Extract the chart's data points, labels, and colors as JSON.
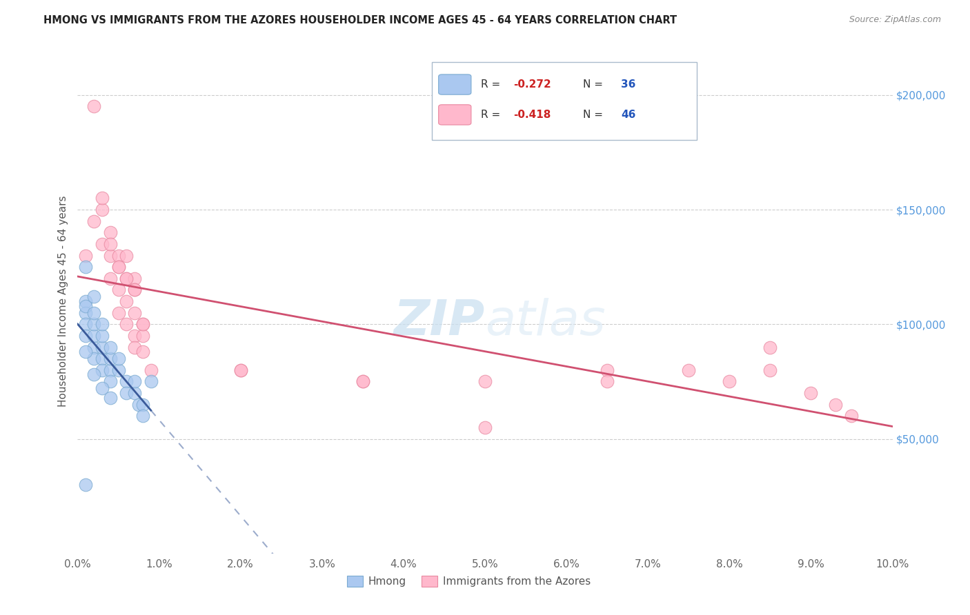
{
  "title": "HMONG VS IMMIGRANTS FROM THE AZORES HOUSEHOLDER INCOME AGES 45 - 64 YEARS CORRELATION CHART",
  "source": "Source: ZipAtlas.com",
  "ylabel": "Householder Income Ages 45 - 64 years",
  "xlim": [
    0.0,
    0.1
  ],
  "ylim": [
    0,
    220000
  ],
  "xticks": [
    0.0,
    0.01,
    0.02,
    0.03,
    0.04,
    0.05,
    0.06,
    0.07,
    0.08,
    0.09,
    0.1
  ],
  "xticklabels": [
    "0.0%",
    "1.0%",
    "2.0%",
    "3.0%",
    "4.0%",
    "5.0%",
    "6.0%",
    "7.0%",
    "8.0%",
    "9.0%",
    "10.0%"
  ],
  "yticks_right": [
    50000,
    100000,
    150000,
    200000
  ],
  "ytick_labels_right": [
    "$50,000",
    "$100,000",
    "$150,000",
    "$200,000"
  ],
  "watermark_zip": "ZIP",
  "watermark_atlas": "atlas",
  "hmong_color": "#aac8f0",
  "hmong_edge_color": "#7aaad0",
  "azores_color": "#ffb8cc",
  "azores_edge_color": "#e888a0",
  "hmong_line_color": "#3a5a9a",
  "azores_line_color": "#d05070",
  "hmong_R": -0.272,
  "hmong_N": 36,
  "azores_R": -0.418,
  "azores_N": 46,
  "hmong_x": [
    0.001,
    0.001,
    0.001,
    0.001,
    0.001,
    0.002,
    0.002,
    0.002,
    0.002,
    0.002,
    0.002,
    0.003,
    0.003,
    0.003,
    0.003,
    0.003,
    0.004,
    0.004,
    0.004,
    0.004,
    0.005,
    0.005,
    0.006,
    0.006,
    0.007,
    0.007,
    0.0075,
    0.008,
    0.008,
    0.009,
    0.001,
    0.001,
    0.002,
    0.003,
    0.004,
    0.001
  ],
  "hmong_y": [
    110000,
    105000,
    100000,
    95000,
    108000,
    90000,
    95000,
    100000,
    105000,
    85000,
    112000,
    85000,
    90000,
    95000,
    80000,
    100000,
    80000,
    85000,
    75000,
    90000,
    80000,
    85000,
    75000,
    70000,
    70000,
    75000,
    65000,
    65000,
    60000,
    75000,
    125000,
    88000,
    78000,
    72000,
    68000,
    30000
  ],
  "azores_x": [
    0.001,
    0.002,
    0.003,
    0.003,
    0.004,
    0.004,
    0.004,
    0.005,
    0.005,
    0.005,
    0.005,
    0.006,
    0.006,
    0.006,
    0.006,
    0.007,
    0.007,
    0.007,
    0.007,
    0.007,
    0.008,
    0.008,
    0.008,
    0.009,
    0.002,
    0.003,
    0.004,
    0.005,
    0.006,
    0.007,
    0.008,
    0.02,
    0.02,
    0.035,
    0.035,
    0.05,
    0.05,
    0.065,
    0.065,
    0.075,
    0.08,
    0.085,
    0.085,
    0.09,
    0.093,
    0.095
  ],
  "azores_y": [
    130000,
    145000,
    150000,
    135000,
    140000,
    130000,
    120000,
    130000,
    125000,
    115000,
    105000,
    130000,
    120000,
    110000,
    100000,
    120000,
    115000,
    105000,
    95000,
    90000,
    100000,
    95000,
    88000,
    80000,
    195000,
    155000,
    135000,
    125000,
    120000,
    115000,
    100000,
    80000,
    80000,
    75000,
    75000,
    75000,
    55000,
    80000,
    75000,
    80000,
    75000,
    90000,
    80000,
    70000,
    65000,
    60000
  ]
}
